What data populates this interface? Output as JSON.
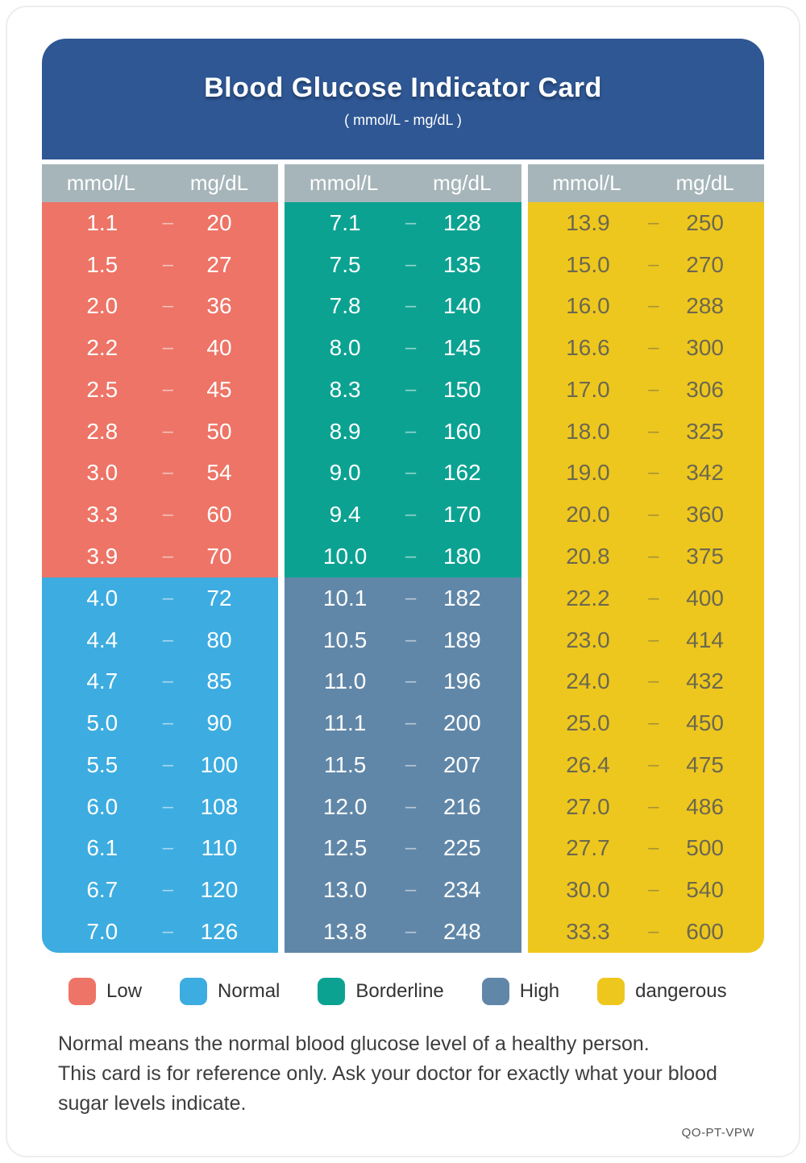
{
  "header": {
    "title": "Blood Glucose Indicator Card",
    "subtitle": "( mmol/L - mg/dL )"
  },
  "table": {
    "separator": "–",
    "column_headers": {
      "mmol": "mmol/L",
      "mgdl": "mg/dL"
    },
    "category_colors": {
      "low": "#ED7466",
      "normal": "#3DACE0",
      "borderline": "#0CA292",
      "high": "#6187A8",
      "dangerous": "#EEC71E"
    },
    "columns": [
      {
        "sections": [
          {
            "category": "low",
            "rows": [
              [
                "1.1",
                "20"
              ],
              [
                "1.5",
                "27"
              ],
              [
                "2.0",
                "36"
              ],
              [
                "2.2",
                "40"
              ],
              [
                "2.5",
                "45"
              ],
              [
                "2.8",
                "50"
              ],
              [
                "3.0",
                "54"
              ],
              [
                "3.3",
                "60"
              ],
              [
                "3.9",
                "70"
              ]
            ]
          },
          {
            "category": "normal",
            "rows": [
              [
                "4.0",
                "72"
              ],
              [
                "4.4",
                "80"
              ],
              [
                "4.7",
                "85"
              ],
              [
                "5.0",
                "90"
              ],
              [
                "5.5",
                "100"
              ],
              [
                "6.0",
                "108"
              ],
              [
                "6.1",
                "110"
              ],
              [
                "6.7",
                "120"
              ],
              [
                "7.0",
                "126"
              ]
            ]
          }
        ]
      },
      {
        "sections": [
          {
            "category": "borderline",
            "rows": [
              [
                "7.1",
                "128"
              ],
              [
                "7.5",
                "135"
              ],
              [
                "7.8",
                "140"
              ],
              [
                "8.0",
                "145"
              ],
              [
                "8.3",
                "150"
              ],
              [
                "8.9",
                "160"
              ],
              [
                "9.0",
                "162"
              ],
              [
                "9.4",
                "170"
              ],
              [
                "10.0",
                "180"
              ]
            ]
          },
          {
            "category": "high",
            "rows": [
              [
                "10.1",
                "182"
              ],
              [
                "10.5",
                "189"
              ],
              [
                "11.0",
                "196"
              ],
              [
                "11.1",
                "200"
              ],
              [
                "11.5",
                "207"
              ],
              [
                "12.0",
                "216"
              ],
              [
                "12.5",
                "225"
              ],
              [
                "13.0",
                "234"
              ],
              [
                "13.8",
                "248"
              ]
            ]
          }
        ]
      },
      {
        "sections": [
          {
            "category": "dangerous",
            "rows": [
              [
                "13.9",
                "250"
              ],
              [
                "15.0",
                "270"
              ],
              [
                "16.0",
                "288"
              ],
              [
                "16.6",
                "300"
              ],
              [
                "17.0",
                "306"
              ],
              [
                "18.0",
                "325"
              ],
              [
                "19.0",
                "342"
              ],
              [
                "20.0",
                "360"
              ],
              [
                "20.8",
                "375"
              ],
              [
                "22.2",
                "400"
              ],
              [
                "23.0",
                "414"
              ],
              [
                "24.0",
                "432"
              ],
              [
                "25.0",
                "450"
              ],
              [
                "26.4",
                "475"
              ],
              [
                "27.0",
                "486"
              ],
              [
                "27.7",
                "500"
              ],
              [
                "30.0",
                "540"
              ],
              [
                "33.3",
                "600"
              ]
            ]
          }
        ]
      }
    ]
  },
  "legend": [
    {
      "label": "Low",
      "category": "low",
      "color": "#ED7466"
    },
    {
      "label": "Normal",
      "category": "normal",
      "color": "#3DACE0"
    },
    {
      "label": "Borderline",
      "category": "borderline",
      "color": "#0CA292"
    },
    {
      "label": "High",
      "category": "high",
      "color": "#6187A8"
    },
    {
      "label": "dangerous",
      "category": "dangerous",
      "color": "#EEC71E"
    }
  ],
  "footer": {
    "note1": "Normal means the normal blood glucose level of a healthy person.",
    "note2": "This card is for reference only. Ask your doctor for exactly what your blood sugar levels indicate.",
    "code": "QO-PT-VPW"
  }
}
